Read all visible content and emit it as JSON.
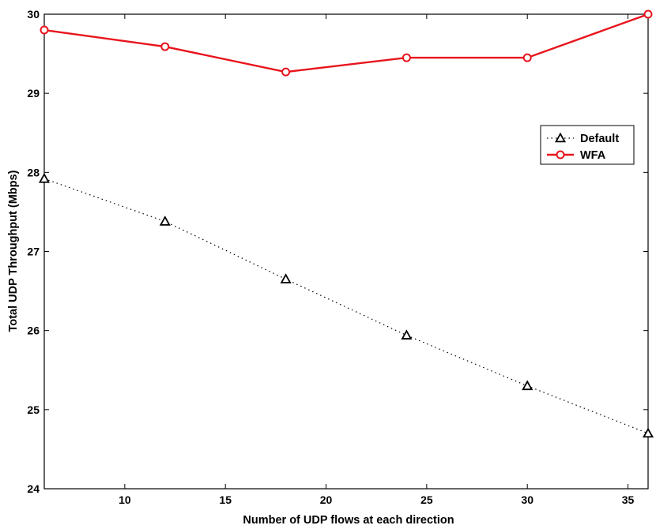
{
  "chart_data": {
    "type": "line",
    "xlabel": "Number of UDP flows at each direction",
    "ylabel": "Total UDP Throughput (Mbps)",
    "xlim": [
      6,
      36
    ],
    "ylim": [
      24,
      30
    ],
    "xticks": [
      10,
      15,
      20,
      25,
      30,
      35
    ],
    "yticks": [
      24,
      25,
      26,
      27,
      28,
      29,
      30
    ],
    "grid": false,
    "legend_position": "right",
    "series": [
      {
        "name": "Default",
        "color": "#000000",
        "line_style": "dotted",
        "marker": "triangle",
        "x": [
          6,
          12,
          18,
          24,
          30,
          36
        ],
        "y": [
          27.92,
          27.38,
          26.65,
          25.94,
          25.3,
          24.7
        ]
      },
      {
        "name": "WFA",
        "color": "#e8141c",
        "line_style": "solid",
        "marker": "circle",
        "x": [
          6,
          12,
          18,
          24,
          30,
          36
        ],
        "y": [
          29.8,
          29.59,
          29.27,
          29.45,
          29.45,
          30.0
        ]
      }
    ]
  }
}
